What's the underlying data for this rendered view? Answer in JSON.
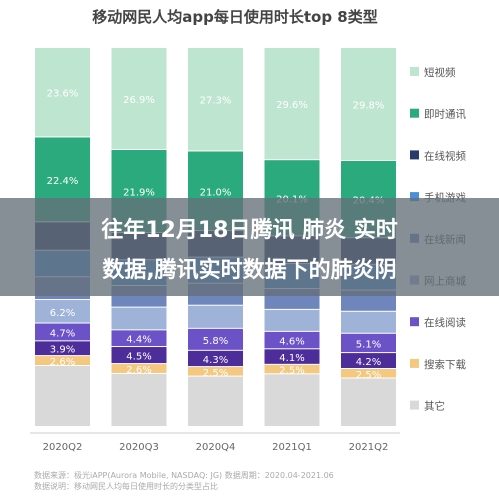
{
  "chart_data": {
    "type": "bar",
    "stacked": true,
    "normalized_percent": true,
    "title": "移动网民人均app每日使用时长top 8类型",
    "categories": [
      "2020Q2",
      "2020Q3",
      "2020Q4",
      "2021Q1",
      "2021Q2"
    ],
    "series": [
      {
        "name": "短视频",
        "color": "#bde5d0",
        "values": [
          23.6,
          26.9,
          27.3,
          29.6,
          29.8
        ],
        "labels": [
          "23.6%",
          "26.9%",
          "27.3%",
          "29.6%",
          "29.8%"
        ]
      },
      {
        "name": "即时通讯",
        "color": "#2bab7d",
        "values": [
          22.4,
          21.9,
          21.0,
          20.1,
          20.4
        ],
        "labels": [
          "22.4%",
          "21.9%",
          "21.0%",
          "20.1%",
          "20.4%"
        ]
      },
      {
        "name": "在线视频",
        "color": "#2a3a6a",
        "values": [
          7.5,
          7.2,
          7.0,
          7.3,
          7.0
        ],
        "labels": [
          "",
          "",
          "",
          "",
          ""
        ]
      },
      {
        "name": "手机游戏",
        "color": "#4a8fd8",
        "values": [
          7.0,
          6.8,
          6.9,
          6.6,
          6.8
        ],
        "labels": [
          "",
          "",
          "",
          "",
          ""
        ]
      },
      {
        "name": "在线新闻",
        "color": "#6f86bd",
        "values": [
          6.0,
          5.7,
          5.8,
          5.5,
          5.6
        ],
        "labels": [
          "",
          "",
          "",
          "",
          ""
        ]
      },
      {
        "name": "网上商城",
        "color": "#9fb2d8",
        "values": [
          6.2,
          6.0,
          6.1,
          5.8,
          5.8
        ],
        "labels": [
          "6.2%",
          "",
          "",
          "",
          ""
        ]
      },
      {
        "name": "在线阅读",
        "color": "#6c52c7",
        "values": [
          4.7,
          4.4,
          5.8,
          4.6,
          5.1
        ],
        "labels": [
          "4.7%",
          "4.4%",
          "5.8%",
          "4.6%",
          "5.1%"
        ]
      },
      {
        "name": "生活服务",
        "color": "#4c2d9a",
        "values": [
          3.9,
          4.5,
          4.3,
          4.1,
          4.2
        ],
        "labels": [
          "3.9%",
          "4.5%",
          "4.3%",
          "4.1%",
          "4.2%"
        ]
      },
      {
        "name": "搜索下载",
        "color": "#f4c87e",
        "values": [
          2.6,
          2.6,
          2.5,
          2.5,
          2.5
        ],
        "labels": [
          "2.6%",
          "2.6%",
          "2.5%",
          "2.5%",
          "2.5%"
        ]
      },
      {
        "name": "其它",
        "color": "#d9d9d9",
        "values": [
          16.1,
          14.0,
          13.3,
          13.9,
          12.8
        ],
        "labels": [
          "",
          "",
          "",
          "",
          ""
        ]
      }
    ],
    "legend_position": "right",
    "legend_entries_visible": [
      "短视频",
      "即时通讯",
      "在线视频",
      "手机游戏",
      "在线新闻",
      "网上商城",
      "在线阅读",
      "搜索下载",
      "其它"
    ],
    "grid": false
  },
  "overlay": {
    "line1": "往年12月18日腾讯 肺炎 实时",
    "line2": "数据,腾讯实时数据下的肺炎阴"
  },
  "source": {
    "line1": "数据来源：极光iAPP(Aurora Mobile, NASDAQ: JG)  数据周期：2020.04-2021.06",
    "line2": "数据说明：移动网民人均每日使用时长的分类型占比"
  }
}
